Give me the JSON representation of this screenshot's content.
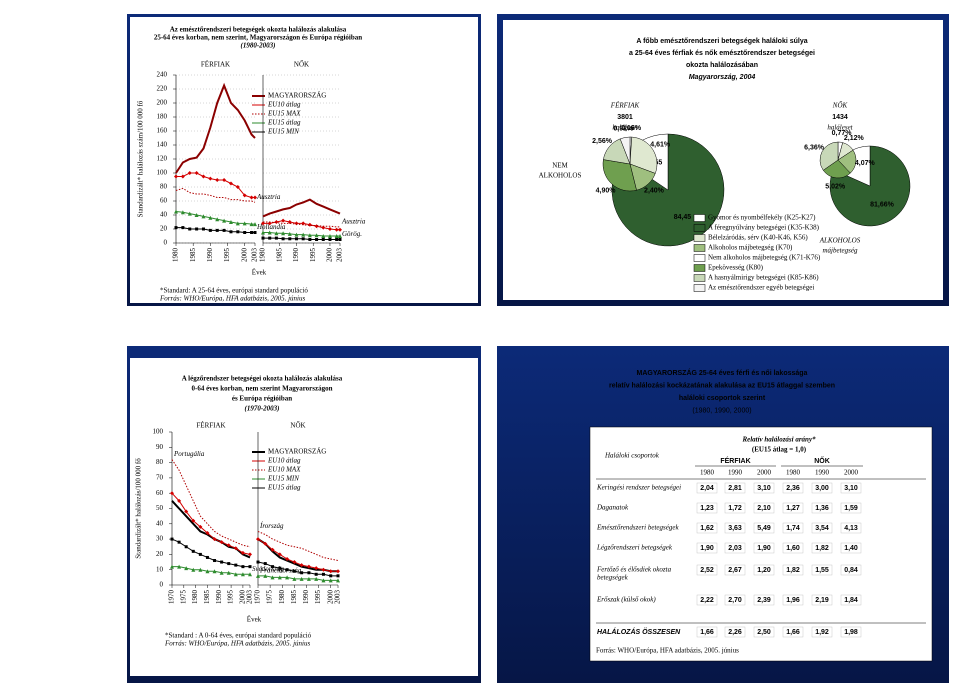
{
  "chart_data": [
    {
      "type": "line",
      "title_lines": [
        "Az emésztőrendszeri betegségek okozta halálozás alakulása",
        "25-64 éves korban, nem szerint, Magyarországon és Európa régióiban",
        "(1980-2003)"
      ],
      "ylabel": "Standardizált* halálozás szám/100 000 fő",
      "xlabel": "Évek",
      "ylim": [
        0,
        240
      ],
      "yticks": [
        0,
        20,
        40,
        60,
        80,
        100,
        120,
        140,
        160,
        180,
        200,
        220,
        240
      ],
      "xlim": [
        1980,
        2003
      ],
      "xticks": [
        1980,
        1985,
        1990,
        1995,
        2000,
        2003
      ],
      "grid": true,
      "footnotes": [
        "*Standard: A 25-64 éves, európai standard populáció",
        "Forrás: WHO/Európa, HFA adatbázis, 2005. június"
      ],
      "panels": [
        {
          "title": "FÉRFIAK",
          "x": [
            1980,
            1982,
            1984,
            1986,
            1988,
            1990,
            1992,
            1994,
            1996,
            1998,
            2000,
            2002,
            2003
          ],
          "series": [
            {
              "name": "MAGYARORSZÁG",
              "color": "#8b0000",
              "width": 2,
              "values": [
                100,
                115,
                120,
                122,
                135,
                165,
                200,
                225,
                200,
                190,
                175,
                155,
                150
              ]
            },
            {
              "name": "EU10 átlag",
              "color": "#d40000",
              "marker": "diamond",
              "values": [
                95,
                95,
                100,
                100,
                95,
                92,
                90,
                90,
                85,
                80,
                68,
                65,
                65
              ]
            },
            {
              "name": "EU15 MAX",
              "color": "#b00000",
              "style": "dotted",
              "label": "Ausztria",
              "label_pos": "end",
              "values": [
                75,
                78,
                72,
                70,
                70,
                68,
                65,
                65,
                62,
                62,
                60,
                60,
                58
              ]
            },
            {
              "name": "EU15 átlag",
              "color": "#2e8b2e",
              "marker": "triangle",
              "values": [
                45,
                44,
                42,
                40,
                38,
                36,
                34,
                32,
                30,
                28,
                28,
                27,
                27
              ]
            },
            {
              "name": "EU15 MIN",
              "color": "#000000",
              "marker": "square",
              "label": "Hollandia",
              "label_pos": "end",
              "values": [
                22,
                22,
                20,
                20,
                20,
                18,
                18,
                18,
                16,
                16,
                15,
                15,
                15
              ]
            }
          ]
        },
        {
          "title": "NŐK",
          "x": [
            1980,
            1982,
            1984,
            1986,
            1988,
            1990,
            1992,
            1994,
            1996,
            1998,
            2000,
            2002,
            2003
          ],
          "series": [
            {
              "color": "#8b0000",
              "width": 2,
              "values": [
                38,
                42,
                45,
                48,
                50,
                55,
                58,
                62,
                56,
                52,
                48,
                44,
                42
              ]
            },
            {
              "color": "#d40000",
              "marker": "diamond",
              "values": [
                28,
                28,
                30,
                32,
                30,
                28,
                28,
                26,
                24,
                22,
                20,
                19,
                19
              ]
            },
            {
              "color": "#b00000",
              "style": "dotted",
              "label": "Ausztria",
              "label_pos": "end",
              "values": [
                30,
                30,
                29,
                28,
                28,
                27,
                26,
                25,
                25,
                24,
                24,
                23,
                23
              ]
            },
            {
              "color": "#2e8b2e",
              "marker": "triangle",
              "values": [
                15,
                15,
                14,
                14,
                13,
                12,
                12,
                11,
                11,
                10,
                10,
                10,
                10
              ]
            },
            {
              "color": "#000000",
              "marker": "square",
              "label": "Görög.",
              "label_pos": "end",
              "values": [
                7,
                7,
                7,
                6,
                6,
                6,
                6,
                5,
                5,
                5,
                5,
                5,
                5
              ]
            }
          ]
        }
      ]
    },
    {
      "type": "pie",
      "title_lines": [
        "A főbb emésztőrendszeri betegségek haláloki súlya",
        "a 25-64 éves férfiak és nők emésztőrendszer betegségei",
        "okozta halálozásában",
        "Magyarország, 2004"
      ],
      "group": "FÉRFIAK",
      "total": 3801,
      "total_label": "haláleset",
      "side_label": [
        "NEM",
        "ALKOHOLOS"
      ],
      "values": [
        84.45,
        15.55
      ],
      "value_labels": [
        "84,45",
        "15,55"
      ],
      "colors": [
        "#2f5f2f",
        "#ffffff"
      ],
      "detail": {
        "values": [
          0.16,
          4.61,
          2.4,
          4.9,
          2.56,
          0.92
        ],
        "value_labels": [
          "0,16%",
          "4,61%",
          "2,40%",
          "4,90%",
          "2,56%",
          "0,92%"
        ],
        "colors": [
          "#ffffff",
          "#dfe8d0",
          "#9fbf7f",
          "#6f9f4f",
          "#c8d8b8",
          "#f4f4f4"
        ]
      },
      "legend": [
        {
          "name": "Gyomor és nyombélfekély (K25-K27)",
          "color": "#ffffff"
        },
        {
          "name": "A féregnyúlvány betegségei (K35-K38)",
          "color": "#2f5f2f"
        },
        {
          "name": "Bélelzáródás, sérv (K40-K46, K56)",
          "color": "#dfe8d0"
        },
        {
          "name": "Alkoholos májbetegség (K70)",
          "color": "#9fbf7f"
        },
        {
          "name": "Nem alkoholos májbetegség (K71-K76)",
          "color": "#ffffff"
        },
        {
          "name": "Epekövesség (K80)",
          "color": "#6f9f4f"
        },
        {
          "name": "A hasnyálmirigy betegségei (K85-K86)",
          "color": "#c8d8b8"
        },
        {
          "name": "Az emésztőrendszer egyéb betegségei",
          "color": "#f4f4f4"
        }
      ]
    },
    {
      "type": "pie",
      "group": "NŐK",
      "total": 1434,
      "total_label": "haláleset",
      "side_label": [
        "ALKOHOLOS",
        "májbetegség"
      ],
      "values": [
        81.66,
        18.34
      ],
      "value_labels": [
        "81,66%",
        null
      ],
      "colors": [
        "#2f5f2f",
        "#ffffff"
      ],
      "detail": {
        "values": [
          0.77,
          2.12,
          4.07,
          5.02,
          6.36
        ],
        "value_labels": [
          "0,77%",
          "2,12%",
          "4,07%",
          "5,02%",
          "6,36%"
        ],
        "colors": [
          "#ffffff",
          "#dfe8d0",
          "#9fbf7f",
          "#6f9f4f",
          "#c8d8b8"
        ]
      }
    },
    {
      "type": "line",
      "title_lines": [
        "A légzőrendszer betegségei okozta halálozás alakulása",
        "0-64 éves korban, nem szerint Magyarországon",
        "és Európa régióiban",
        "(1970-2003)"
      ],
      "ylabel": "Standardizált* halálozás/100 000 fő",
      "xlabel": "Évek",
      "ylim": [
        0,
        100
      ],
      "yticks": [
        0,
        10,
        20,
        30,
        40,
        50,
        60,
        70,
        80,
        90,
        100
      ],
      "xlim": [
        1970,
        2003
      ],
      "xticks": [
        1970,
        1975,
        1980,
        1985,
        1990,
        1995,
        2000,
        2003
      ],
      "grid": false,
      "footnotes": [
        "*Standard : A 0-64 éves, európai standard populáció",
        "Forrás: WHO/Európa, HFA adatbázis, 2005. június"
      ],
      "panels": [
        {
          "title": "FÉRFIAK",
          "x": [
            1970,
            1973,
            1976,
            1979,
            1982,
            1985,
            1988,
            1991,
            1994,
            1997,
            2000,
            2003
          ],
          "series": [
            {
              "name": "MAGYARORSZÁG",
              "color": "#000000",
              "width": 2,
              "values": [
                55,
                50,
                45,
                40,
                35,
                33,
                30,
                28,
                25,
                24,
                20,
                18
              ]
            },
            {
              "name": "EU10 átlag",
              "color": "#d40000",
              "marker": "diamond",
              "values": [
                60,
                55,
                48,
                42,
                38,
                34,
                30,
                28,
                26,
                24,
                21,
                20
              ]
            },
            {
              "name": "EU10 MAX",
              "color": "#b00000",
              "style": "dotted",
              "label": "Portugália",
              "label_pos": "start",
              "values": [
                82,
                75,
                65,
                55,
                45,
                40,
                35,
                32,
                30,
                28,
                26,
                25
              ]
            },
            {
              "name": "EU15 MIN",
              "color": "#2e8b2e",
              "marker": "triangle",
              "label": "Svédország",
              "label_pos": "end",
              "values": [
                12,
                12,
                11,
                10,
                10,
                9,
                9,
                8,
                8,
                7,
                7,
                7
              ]
            },
            {
              "name": "EU15 átlag",
              "color": "#000000",
              "marker": "square",
              "values": [
                30,
                28,
                25,
                22,
                20,
                18,
                16,
                15,
                14,
                13,
                12,
                12
              ]
            }
          ]
        },
        {
          "title": "NŐK",
          "x": [
            1970,
            1973,
            1976,
            1979,
            1982,
            1985,
            1988,
            1991,
            1994,
            1997,
            2000,
            2003
          ],
          "series": [
            {
              "color": "#000000",
              "width": 2,
              "values": [
                30,
                27,
                22,
                18,
                16,
                14,
                12,
                11,
                10,
                10,
                9,
                9
              ]
            },
            {
              "color": "#d40000",
              "marker": "diamond",
              "values": [
                30,
                27,
                23,
                20,
                17,
                15,
                13,
                12,
                11,
                10,
                9,
                9
              ]
            },
            {
              "color": "#b00000",
              "style": "dotted",
              "label": "Írország",
              "label_pos": "start",
              "values": [
                35,
                33,
                30,
                28,
                26,
                25,
                24,
                22,
                20,
                18,
                17,
                16
              ]
            },
            {
              "color": "#2e8b2e",
              "marker": "triangle",
              "label": "Franciaország",
              "label_pos": "start",
              "values": [
                6,
                6,
                5,
                5,
                5,
                4,
                4,
                4,
                4,
                3,
                3,
                3
              ]
            },
            {
              "color": "#000000",
              "marker": "square",
              "values": [
                15,
                14,
                12,
                11,
                10,
                9,
                8,
                8,
                7,
                7,
                6,
                6
              ]
            }
          ]
        }
      ]
    }
  ],
  "table_slide": {
    "title_lines": [
      "MAGYARORSZÁG 25-64 éves férfi és női lakossága",
      "relatív halálozási kockázatának alakulása az EU15 átlaggal szemben",
      "haláloki csoportok szerint",
      "(1980, 1990, 2000)"
    ],
    "header": {
      "group_col": "Haláloki csoportok",
      "title": "Relatív halálozási arány*",
      "subtitle": "(EU15 átlag = 1,0)",
      "groups": [
        "FÉRFIAK",
        "NŐK"
      ],
      "years": [
        "1980",
        "1990",
        "2000",
        "1980",
        "1990",
        "2000"
      ]
    },
    "rows": [
      {
        "label_lines": [
          "Keringési rendszer betegségei"
        ],
        "cells": [
          "2,04",
          "2,81",
          "3,10",
          "2,36",
          "3,00",
          "3,10"
        ]
      },
      {
        "label_lines": [
          "Daganatok"
        ],
        "cells": [
          "1,23",
          "1,72",
          "2,10",
          "1,27",
          "1,36",
          "1,59"
        ]
      },
      {
        "label_lines": [
          "Emésztőrendszeri betegségek"
        ],
        "cells": [
          "1,62",
          "3,63",
          "5,49",
          "1,74",
          "3,54",
          "4,13"
        ]
      },
      {
        "label_lines": [
          "Légzőrendszeri betegségek"
        ],
        "cells": [
          "1,90",
          "2,03",
          "1,90",
          "1,60",
          "1,82",
          "1,40"
        ]
      },
      {
        "label_lines": [
          "Fertőző és élősdiek okozta",
          "betegségek"
        ],
        "cells": [
          "2,52",
          "2,67",
          "1,20",
          "1,82",
          "1,55",
          "0,84"
        ]
      },
      {
        "label_lines": [
          "Erőszak (külső okok)"
        ],
        "cells": [
          "2,22",
          "2,70",
          "2,39",
          "1,96",
          "2,19",
          "1,84"
        ]
      },
      {
        "label_lines": [
          "HALÁLOZÁS ÖSSZESEN"
        ],
        "cells": [
          "1,66",
          "2,26",
          "2,50",
          "1,66",
          "1,92",
          "1,98"
        ]
      }
    ],
    "source": "Forrás: WHO/Európa, HFA adatbázis, 2005. június"
  }
}
